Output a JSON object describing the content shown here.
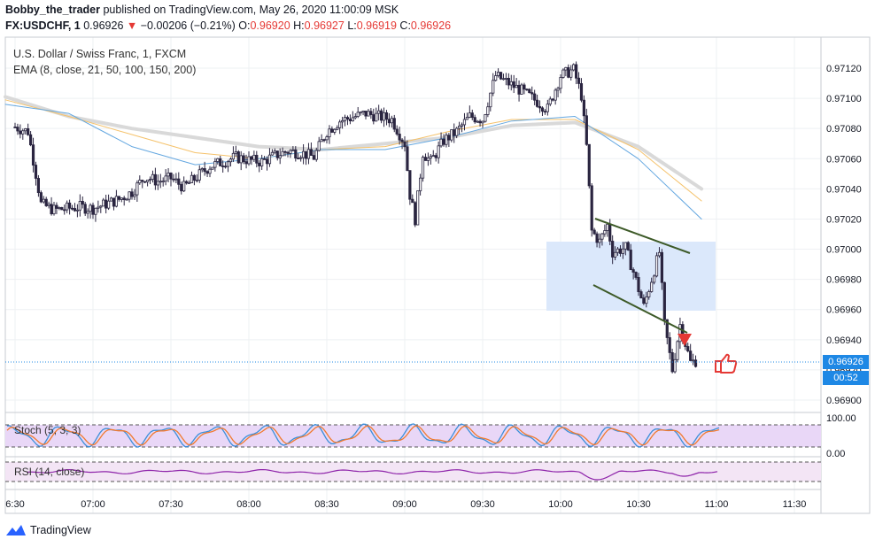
{
  "header": {
    "author": "Bobby_the_trader",
    "published_text": " published on TradingView.com, May 26, 2020 11:00:09 MSK",
    "symbol": "FX:USDCHF, 1",
    "last": "0.96926",
    "change": "−0.00206 (−0.21%)",
    "o_label": "O:",
    "o": "0.96920",
    "h_label": "H:",
    "h": "0.96927",
    "l_label": "L:",
    "l": "0.96919",
    "c_label": "C:",
    "c": "0.96926"
  },
  "legend": {
    "instrument": "U.S. Dollar / Swiss Franc, 1, FXCM",
    "ema": "EMA (8, close, 21, 50, 100, 150, 200)",
    "stoch": "Stoch (5, 3, 3)",
    "rsi": "RSI (14, close)"
  },
  "price_tags": {
    "last": "0.96926",
    "countdown": "00:52"
  },
  "brand": "TradingView",
  "colors": {
    "candle_body": "#2a2540",
    "tag_blue": "#1e88e5",
    "ema_blue": "#64a7e0",
    "ema_orange": "#f5c26b",
    "ema_gray": "#d9d9d9",
    "box_fill": "#dbe8fb",
    "channel": "#3d5a28",
    "arrow_red": "#e53935",
    "stoch_band": "#e9d7f7",
    "stoch_k": "#3b8fd9",
    "stoch_d": "#f07a2f",
    "rsi_line": "#8e24aa"
  },
  "chart_data": {
    "type": "candlestick",
    "price_axis": [
      "0.97120",
      "0.97100",
      "0.97080",
      "0.97060",
      "0.97040",
      "0.97020",
      "0.97000",
      "0.96980",
      "0.96960",
      "0.96940",
      "0.96920",
      "0.96900"
    ],
    "time_axis": [
      "6:30",
      "07:00",
      "07:30",
      "08:00",
      "08:30",
      "09:00",
      "09:30",
      "10:00",
      "10:30",
      "11:00",
      "11:30"
    ],
    "ylim": [
      0.96895,
      0.97135
    ],
    "close_path": [
      [
        "06:30",
        0.97081
      ],
      [
        "06:35",
        0.97078
      ],
      [
        "06:38",
        0.9705
      ],
      [
        "06:40",
        0.9703
      ],
      [
        "06:45",
        0.97026
      ],
      [
        "06:55",
        0.97028
      ],
      [
        "07:00",
        0.97027
      ],
      [
        "07:10",
        0.97033
      ],
      [
        "07:15",
        0.97038
      ],
      [
        "07:20",
        0.97048
      ],
      [
        "07:25",
        0.97045
      ],
      [
        "07:30",
        0.97047
      ],
      [
        "07:35",
        0.97041
      ],
      [
        "07:45",
        0.97055
      ],
      [
        "07:55",
        0.97061
      ],
      [
        "08:00",
        0.97059
      ],
      [
        "08:05",
        0.97058
      ],
      [
        "08:10",
        0.97062
      ],
      [
        "08:15",
        0.97065
      ],
      [
        "08:20",
        0.97064
      ],
      [
        "08:25",
        0.97061
      ],
      [
        "08:30",
        0.97078
      ],
      [
        "08:35",
        0.97085
      ],
      [
        "08:45",
        0.9709
      ],
      [
        "08:55",
        0.97086
      ],
      [
        "09:00",
        0.9707
      ],
      [
        "09:02",
        0.97036
      ],
      [
        "09:04",
        0.9702
      ],
      [
        "09:07",
        0.97064
      ],
      [
        "09:10",
        0.97058
      ],
      [
        "09:15",
        0.97072
      ],
      [
        "09:20",
        0.97078
      ],
      [
        "09:25",
        0.97088
      ],
      [
        "09:30",
        0.97086
      ],
      [
        "09:35",
        0.97115
      ],
      [
        "09:45",
        0.97105
      ],
      [
        "09:55",
        0.97093
      ],
      [
        "10:00",
        0.97115
      ],
      [
        "10:05",
        0.97119
      ],
      [
        "10:08",
        0.97102
      ],
      [
        "10:10",
        0.97068
      ],
      [
        "10:12",
        0.97012
      ],
      [
        "10:15",
        0.97005
      ],
      [
        "10:18",
        0.97016
      ],
      [
        "10:20",
        0.96998
      ],
      [
        "10:25",
        0.97001
      ],
      [
        "10:28",
        0.96985
      ],
      [
        "10:32",
        0.96962
      ],
      [
        "10:38",
        0.96998
      ],
      [
        "10:40",
        0.9695
      ],
      [
        "10:43",
        0.9692
      ],
      [
        "10:46",
        0.9695
      ],
      [
        "10:50",
        0.96925
      ],
      [
        "10:52",
        0.96926
      ]
    ],
    "ema_series": [
      {
        "name": "EMA fast",
        "values": [
          0.97096,
          0.9709,
          0.97068,
          0.97056,
          0.9706,
          0.97066,
          0.97066,
          0.97074,
          0.97085,
          0.97088,
          0.9706,
          0.9702
        ]
      },
      {
        "name": "EMA mid",
        "values": [
          0.97099,
          0.97088,
          0.97076,
          0.97064,
          0.9706,
          0.97066,
          0.97068,
          0.97078,
          0.97086,
          0.97086,
          0.97066,
          0.97032
        ]
      },
      {
        "name": "EMA slow",
        "values": [
          0.97101,
          0.97088,
          0.9708,
          0.97074,
          0.97068,
          0.97066,
          0.9707,
          0.97074,
          0.97082,
          0.97084,
          0.97068,
          0.9704
        ]
      }
    ],
    "stoch_axis": [
      "100.00",
      "0.00"
    ],
    "annotations": [
      "descending channel",
      "supply box",
      "sell arrow",
      "thumbs-up"
    ]
  }
}
